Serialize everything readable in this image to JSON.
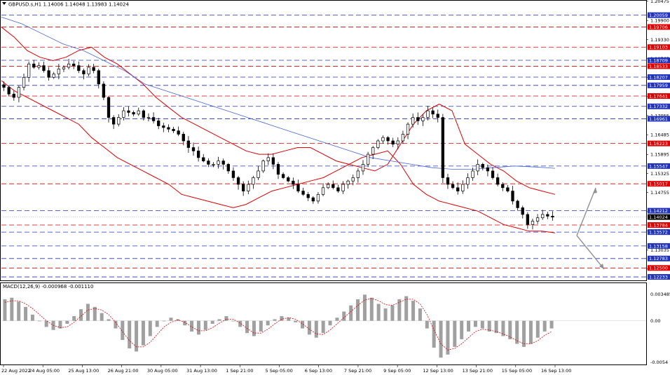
{
  "header": {
    "symbol_line": "GBPUSD.s,H1  1.14006 1.14048 1.13983 1.14024"
  },
  "macd_label": "MACD(12,26,9) -0.000968 -0.001110",
  "colors": {
    "candle": "#000000",
    "bollinger": "#e00000",
    "ma": "#4466dd",
    "level_red": "#e00000",
    "level_blue": "#2233bb",
    "macd_hist": "#a0a0a0",
    "macd_signal": "#e00000",
    "arrow": "#909090"
  },
  "chart_data": [
    {
      "type": "candlestick",
      "title": "GBPUSD.s,H1",
      "ohlc_last": {
        "open": 1.14006,
        "high": 1.14048,
        "low": 1.13983,
        "close": 1.14024
      },
      "current_price": "1.14024",
      "ylim": [
        1.1215,
        1.2047
      ],
      "y_ticks": [
        "1.20475",
        "1.19900",
        "1.19330",
        "1.18765",
        "1.18195",
        "1.17625",
        "1.17055",
        "1.16485",
        "1.15895",
        "1.15325",
        "1.14755",
        "1.14185",
        "1.13615",
        "1.13035",
        "1.12470"
      ],
      "x_ticks": [
        "22 Aug 2022",
        "24 Aug 05:00",
        "25 Aug 13:00",
        "26 Aug 21:00",
        "30 Aug 05:00",
        "31 Aug 13:00",
        "1 Sep 21:00",
        "5 Sep 05:00",
        "6 Sep 13:00",
        "7 Sep 21:00",
        "9 Sep 05:00",
        "12 Sep 13:00",
        "13 Sep 21:00",
        "15 Sep 05:00",
        "16 Sep 13:00"
      ],
      "levels": [
        {
          "value": 1.20059,
          "label": "1.20059",
          "color": "blue"
        },
        {
          "value": 1.19706,
          "label": "1.19706",
          "color": "red"
        },
        {
          "value": 1.19103,
          "label": "1.19103",
          "color": "red"
        },
        {
          "value": 1.18709,
          "label": "1.18709",
          "color": "blue"
        },
        {
          "value": 1.18533,
          "label": "1.18533",
          "color": "red"
        },
        {
          "value": 1.18207,
          "label": "1.18207",
          "color": "blue"
        },
        {
          "value": 1.17959,
          "label": "1.17959",
          "color": "blue"
        },
        {
          "value": 1.17641,
          "label": "1.17641",
          "color": "red"
        },
        {
          "value": 1.17332,
          "label": "1.17332",
          "color": "blue"
        },
        {
          "value": 1.16961,
          "label": "1.16961",
          "color": "blue"
        },
        {
          "value": 1.16223,
          "label": "1.16223",
          "color": "red"
        },
        {
          "value": 1.15547,
          "label": "1.15547",
          "color": "blue"
        },
        {
          "value": 1.15017,
          "label": "1.15017",
          "color": "red"
        },
        {
          "value": 1.14212,
          "label": "1.14212",
          "color": "blue"
        },
        {
          "value": 1.13784,
          "label": "1.13784",
          "color": "red"
        },
        {
          "value": 1.13572,
          "label": "1.13572",
          "color": "blue"
        },
        {
          "value": 1.13158,
          "label": "1.13158",
          "color": "blue"
        },
        {
          "value": 1.12783,
          "label": "1.12783",
          "color": "blue"
        },
        {
          "value": 1.125,
          "label": "1.12500",
          "color": "red"
        },
        {
          "value": 1.12233,
          "label": "1.12233",
          "color": "blue"
        }
      ],
      "close_series": [
        1.179,
        1.177,
        1.176,
        1.179,
        1.182,
        1.186,
        1.185,
        1.1855,
        1.184,
        1.182,
        1.183,
        1.1845,
        1.185,
        1.186,
        1.1855,
        1.184,
        1.183,
        1.185,
        1.184,
        1.18,
        1.176,
        1.17,
        1.168,
        1.17,
        1.172,
        1.1715,
        1.171,
        1.172,
        1.17,
        1.17,
        1.169,
        1.1675,
        1.167,
        1.1665,
        1.166,
        1.165,
        1.163,
        1.161,
        1.16,
        1.158,
        1.157,
        1.156,
        1.156,
        1.157,
        1.156,
        1.154,
        1.152,
        1.15,
        1.148,
        1.15,
        1.152,
        1.154,
        1.157,
        1.158,
        1.156,
        1.153,
        1.152,
        1.151,
        1.15,
        1.148,
        1.147,
        1.146,
        1.145,
        1.147,
        1.149,
        1.15,
        1.149,
        1.148,
        1.15,
        1.151,
        1.152,
        1.154,
        1.156,
        1.159,
        1.161,
        1.163,
        1.164,
        1.163,
        1.162,
        1.163,
        1.165,
        1.168,
        1.17,
        1.169,
        1.17,
        1.172,
        1.171,
        1.17,
        1.152,
        1.15,
        1.149,
        1.148,
        1.15,
        1.152,
        1.154,
        1.156,
        1.155,
        1.154,
        1.152,
        1.15,
        1.149,
        1.148,
        1.145,
        1.143,
        1.141,
        1.138,
        1.139,
        1.14,
        1.141,
        1.1405,
        1.1402
      ],
      "bollinger_upper": [
        1.197,
        1.194,
        1.19,
        1.188,
        1.187,
        1.188,
        1.19,
        1.191,
        1.188,
        1.186,
        1.183,
        1.18,
        1.176,
        1.173,
        1.17,
        1.168,
        1.166,
        1.164,
        1.162,
        1.16,
        1.159,
        1.159,
        1.16,
        1.161,
        1.161,
        1.159,
        1.157,
        1.156,
        1.155,
        1.154,
        1.156,
        1.162,
        1.168,
        1.172,
        1.174,
        1.172,
        1.162,
        1.159,
        1.156,
        1.154,
        1.151,
        1.149,
        1.148,
        1.147
      ],
      "bollinger_lower": [
        1.181,
        1.178,
        1.176,
        1.174,
        1.172,
        1.17,
        1.168,
        1.164,
        1.161,
        1.158,
        1.156,
        1.154,
        1.152,
        1.15,
        1.147,
        1.146,
        1.145,
        1.144,
        1.143,
        1.144,
        1.146,
        1.148,
        1.149,
        1.15,
        1.151,
        1.152,
        1.154,
        1.156,
        1.158,
        1.159,
        1.16,
        1.156,
        1.15,
        1.147,
        1.145,
        1.144,
        1.143,
        1.142,
        1.14,
        1.138,
        1.137,
        1.136,
        1.136,
        1.1355
      ],
      "moving_average": [
        1.2,
        1.198,
        1.195,
        1.192,
        1.19,
        1.187,
        1.184,
        1.18,
        1.178,
        1.176,
        1.174,
        1.172,
        1.17,
        1.168,
        1.166,
        1.164,
        1.162,
        1.16,
        1.158,
        1.157,
        1.156,
        1.155,
        1.1545,
        1.1545,
        1.155,
        1.1555,
        1.1552,
        1.1548
      ]
    },
    {
      "type": "bar",
      "title": "MACD(12,26,9)",
      "values_text": "-0.000968 -0.001110",
      "ylim": [
        -0.0056,
        0.0048
      ],
      "y_ticks": [
        "0.003485",
        "0.00",
        "-0.0054"
      ],
      "histogram": [
        0.0028,
        0.003,
        0.0025,
        0.0018,
        0.0008,
        0.0,
        -0.0008,
        -0.0012,
        -0.001,
        -0.0004,
        0.0006,
        0.0015,
        0.0022,
        0.0018,
        0.001,
        0.0002,
        -0.001,
        -0.0025,
        -0.0036,
        -0.004,
        -0.0032,
        -0.002,
        -0.0008,
        0.0,
        0.0004,
        0.0002,
        -0.0006,
        -0.0014,
        -0.0018,
        -0.0012,
        -0.0004,
        0.0002,
        0.0006,
        0.0,
        -0.0008,
        -0.0016,
        -0.002,
        -0.0014,
        -0.0006,
        0.0002,
        0.0006,
        0.0004,
        -0.0002,
        -0.001,
        -0.0018,
        -0.0022,
        -0.0016,
        -0.0006,
        0.0004,
        0.0012,
        0.002,
        0.0028,
        0.0034,
        0.003,
        0.0022,
        0.0016,
        0.002,
        0.0028,
        0.0032,
        0.0026,
        0.0016,
        -0.001,
        -0.0035,
        -0.0048,
        -0.0044,
        -0.0034,
        -0.0024,
        -0.0014,
        -0.0008,
        -0.001,
        -0.0014,
        -0.0016,
        -0.002,
        -0.0024,
        -0.003,
        -0.0034,
        -0.003,
        -0.0022,
        -0.0014,
        -0.001
      ],
      "signal": [
        0.0024,
        0.0026,
        0.0026,
        0.0022,
        0.0016,
        0.0008,
        0.0,
        -0.0006,
        -0.0009,
        -0.0008,
        -0.0002,
        0.0006,
        0.0014,
        0.0016,
        0.0014,
        0.0008,
        -0.0002,
        -0.0014,
        -0.0026,
        -0.0034,
        -0.0034,
        -0.0028,
        -0.0018,
        -0.0008,
        -0.0002,
        0.0001,
        -0.0002,
        -0.0008,
        -0.0013,
        -0.0013,
        -0.0009,
        -0.0003,
        0.0002,
        0.0002,
        -0.0003,
        -0.001,
        -0.0016,
        -0.0016,
        -0.0011,
        -0.0004,
        0.0002,
        0.0004,
        0.0002,
        -0.0004,
        -0.0011,
        -0.0017,
        -0.0018,
        -0.0012,
        -0.0004,
        0.0004,
        0.0012,
        0.002,
        0.0027,
        0.0029,
        0.0026,
        0.0021,
        0.002,
        0.0024,
        0.0028,
        0.0028,
        0.0022,
        0.0008,
        -0.0012,
        -0.003,
        -0.0038,
        -0.0036,
        -0.003,
        -0.0022,
        -0.0014,
        -0.0011,
        -0.0012,
        -0.0014,
        -0.0017,
        -0.0021,
        -0.0026,
        -0.003,
        -0.003,
        -0.0026,
        -0.0019,
        -0.0014
      ]
    }
  ]
}
